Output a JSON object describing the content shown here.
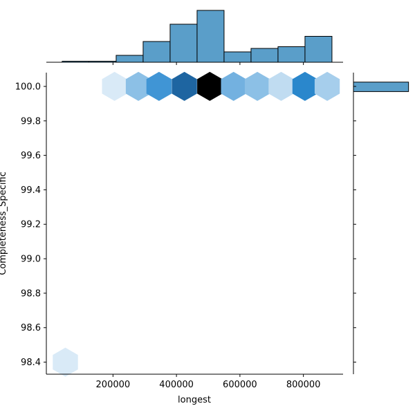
{
  "chart_data": {
    "type": "hexbin-jointplot",
    "xlabel": "longest",
    "ylabel": "Completeness_Specific",
    "xlim": [
      -10000,
      925000
    ],
    "ylim": [
      98.33,
      100.08
    ],
    "xticks": [
      200000,
      400000,
      600000,
      800000
    ],
    "xtick_labels": [
      "200000",
      "400000",
      "600000",
      "800000"
    ],
    "yticks": [
      98.4,
      98.6,
      98.8,
      99.0,
      99.2,
      99.4,
      99.6,
      99.8,
      100.0
    ],
    "ytick_labels": [
      "98.4",
      "98.6",
      "98.8",
      "99.0",
      "99.2",
      "99.4",
      "99.6",
      "99.8",
      "100.0"
    ],
    "hexbins": [
      {
        "x": 50000,
        "y": 98.4,
        "count": 1
      },
      {
        "x": 205000,
        "y": 100.0,
        "count": 1
      },
      {
        "x": 280000,
        "y": 100.0,
        "count": 4
      },
      {
        "x": 345000,
        "y": 100.0,
        "count": 7
      },
      {
        "x": 425000,
        "y": 100.0,
        "count": 10
      },
      {
        "x": 505000,
        "y": 100.0,
        "count": 13
      },
      {
        "x": 580000,
        "y": 100.0,
        "count": 5
      },
      {
        "x": 655000,
        "y": 100.0,
        "count": 4
      },
      {
        "x": 730000,
        "y": 100.0,
        "count": 2
      },
      {
        "x": 805000,
        "y": 100.0,
        "count": 8
      },
      {
        "x": 875000,
        "y": 100.0,
        "count": 3
      }
    ],
    "x_histogram": {
      "bin_edges": [
        40000,
        125000,
        210000,
        295000,
        380000,
        465000,
        550000,
        635000,
        720000,
        805000,
        890000
      ],
      "counts": [
        0.3,
        0.3,
        2,
        6,
        11,
        15,
        3,
        4,
        4.5,
        7.5
      ],
      "ymax": 16
    },
    "y_histogram": {
      "bins": [
        {
          "y0": 98.33,
          "y1": 99.97,
          "count": 0.1
        },
        {
          "y0": 99.97,
          "y1": 100.025,
          "count": 59
        }
      ],
      "xmax": 60
    },
    "colors": {
      "bar_fill": "#5a9ec9",
      "bar_edge": "#000000",
      "hex_low": "#f3f8fd",
      "hex_mid": "#2b8ad0",
      "hex_high": "#000000"
    }
  }
}
